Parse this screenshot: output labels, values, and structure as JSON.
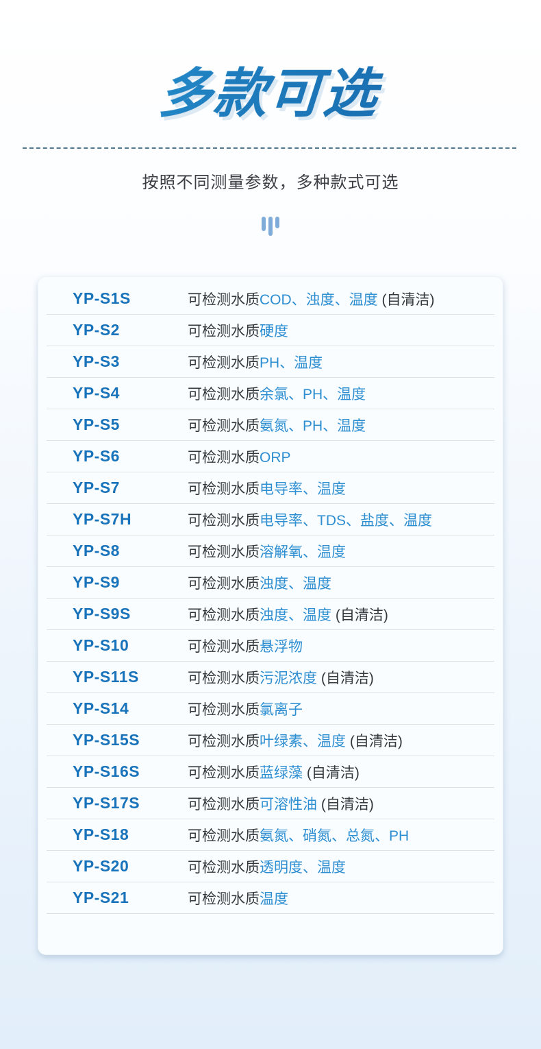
{
  "header": {
    "title": "多款可选",
    "subtitle": "按照不同测量参数，多种款式可选"
  },
  "icons": {
    "vertical_bars_icon": "three-vertical-rounded-bars"
  },
  "colors": {
    "title_gradient_start": "#2fa2dc",
    "title_gradient_end": "#1565a8",
    "model_blue": "#1873bb",
    "param_blue": "#2d8ed1",
    "body_text": "#33383d",
    "dashed_line": "#4e7894",
    "page_bg_bottom": "#e2eefa",
    "card_bg": "#fafdff"
  },
  "table": {
    "rows": [
      {
        "model": "YP-S1S",
        "prefix": "可检测水质",
        "params": "COD、浊度、温度",
        "suffix": " (自清洁)"
      },
      {
        "model": "YP-S2",
        "prefix": "可检测水质",
        "params": "硬度",
        "suffix": ""
      },
      {
        "model": "YP-S3",
        "prefix": "可检测水质",
        "params": "PH、温度",
        "suffix": ""
      },
      {
        "model": "YP-S4",
        "prefix": "可检测水质",
        "params": "余氯、PH、温度",
        "suffix": ""
      },
      {
        "model": "YP-S5",
        "prefix": "可检测水质",
        "params": "氨氮、PH、温度",
        "suffix": ""
      },
      {
        "model": "YP-S6",
        "prefix": "可检测水质",
        "params": "ORP",
        "suffix": ""
      },
      {
        "model": "YP-S7",
        "prefix": "可检测水质",
        "params": "电导率、温度",
        "suffix": ""
      },
      {
        "model": "YP-S7H",
        "prefix": "可检测水质",
        "params": "电导率、TDS、盐度、温度",
        "suffix": ""
      },
      {
        "model": "YP-S8",
        "prefix": "可检测水质",
        "params": "溶解氧、温度",
        "suffix": ""
      },
      {
        "model": "YP-S9",
        "prefix": "可检测水质",
        "params": "浊度、温度",
        "suffix": ""
      },
      {
        "model": "YP-S9S",
        "prefix": "可检测水质",
        "params": "浊度、温度",
        "suffix": " (自清洁)"
      },
      {
        "model": "YP-S10",
        "prefix": "可检测水质",
        "params": "悬浮物",
        "suffix": ""
      },
      {
        "model": "YP-S11S",
        "prefix": "可检测水质",
        "params": "污泥浓度",
        "suffix": " (自清洁)"
      },
      {
        "model": "YP-S14",
        "prefix": "可检测水质",
        "params": "氯离子",
        "suffix": ""
      },
      {
        "model": "YP-S15S",
        "prefix": "可检测水质",
        "params": "叶绿素、温度",
        "suffix": " (自清洁)"
      },
      {
        "model": "YP-S16S",
        "prefix": "可检测水质",
        "params": "蓝绿藻",
        "suffix": " (自清洁)"
      },
      {
        "model": "YP-S17S",
        "prefix": "可检测水质",
        "params": "可溶性油",
        "suffix": " (自清洁)"
      },
      {
        "model": "YP-S18",
        "prefix": "可检测水质",
        "params": "氨氮、硝氮、总氮、PH",
        "suffix": ""
      },
      {
        "model": "YP-S20",
        "prefix": "可检测水质",
        "params": "透明度、温度",
        "suffix": ""
      },
      {
        "model": "YP-S21",
        "prefix": "可检测水质",
        "params": "温度",
        "suffix": ""
      }
    ]
  }
}
